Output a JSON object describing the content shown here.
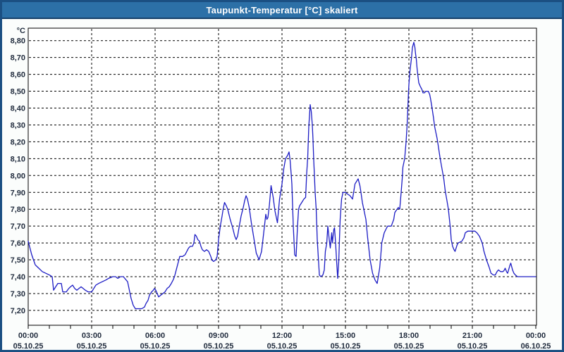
{
  "window": {
    "title": "Taupunkt-Temperatur [°C] skaliert"
  },
  "colors": {
    "titlebar_bg": "#2c70a7",
    "titlebar_text": "#ffffff",
    "frame_border": "#1b4f82",
    "page_bg": "#fbfdfc",
    "plot_bg": "#ffffff",
    "plot_border": "#000000",
    "grid": "#000000",
    "axis_text": "#1f2a3c",
    "line": "#1c1cc4"
  },
  "chart_data": {
    "type": "line",
    "title": "Taupunkt-Temperatur [°C] skaliert",
    "unit_label": "°C",
    "grid": "dashed",
    "legend": "none",
    "ylim": [
      7.2,
      8.8
    ],
    "y_tick_step": 0.1,
    "y_tick_labels": [
      "8,80",
      "8,70",
      "8,60",
      "8,50",
      "8,40",
      "8,30",
      "8,20",
      "8,10",
      "8,00",
      "7,90",
      "7,80",
      "7,70",
      "7,60",
      "7,50",
      "7,40",
      "7,30",
      "7,20"
    ],
    "x_range_hours": [
      0,
      24
    ],
    "x_major_step_hours": 3,
    "x_minor_step_hours": 1,
    "x_ticks": [
      {
        "time": "00:00",
        "date": "05.10.25"
      },
      {
        "time": "03:00",
        "date": "05.10.25"
      },
      {
        "time": "06:00",
        "date": "05.10.25"
      },
      {
        "time": "09:00",
        "date": "05.10.25"
      },
      {
        "time": "12:00",
        "date": "05.10.25"
      },
      {
        "time": "15:00",
        "date": "05.10.25"
      },
      {
        "time": "18:00",
        "date": "05.10.25"
      },
      {
        "time": "21:00",
        "date": "05.10.25"
      },
      {
        "time": "00:00",
        "date": "06.10.25"
      }
    ],
    "points_format": "[minutes_since_00:00, temperature_C]",
    "points": [
      [
        0,
        7.61
      ],
      [
        5,
        7.57
      ],
      [
        10,
        7.53
      ],
      [
        15,
        7.5
      ],
      [
        20,
        7.47
      ],
      [
        25,
        7.46
      ],
      [
        30,
        7.45
      ],
      [
        40,
        7.43
      ],
      [
        50,
        7.42
      ],
      [
        60,
        7.41
      ],
      [
        68,
        7.4
      ],
      [
        72,
        7.32
      ],
      [
        78,
        7.34
      ],
      [
        84,
        7.36
      ],
      [
        94,
        7.36
      ],
      [
        98,
        7.31
      ],
      [
        108,
        7.31
      ],
      [
        115,
        7.33
      ],
      [
        120,
        7.34
      ],
      [
        126,
        7.35
      ],
      [
        132,
        7.33
      ],
      [
        138,
        7.32
      ],
      [
        144,
        7.33
      ],
      [
        150,
        7.34
      ],
      [
        156,
        7.33
      ],
      [
        162,
        7.32
      ],
      [
        170,
        7.31
      ],
      [
        180,
        7.31
      ],
      [
        186,
        7.33
      ],
      [
        192,
        7.35
      ],
      [
        200,
        7.36
      ],
      [
        210,
        7.37
      ],
      [
        220,
        7.38
      ],
      [
        228,
        7.39
      ],
      [
        240,
        7.4
      ],
      [
        248,
        7.4
      ],
      [
        254,
        7.39
      ],
      [
        262,
        7.4
      ],
      [
        270,
        7.4
      ],
      [
        278,
        7.38
      ],
      [
        282,
        7.37
      ],
      [
        288,
        7.31
      ],
      [
        292,
        7.27
      ],
      [
        298,
        7.23
      ],
      [
        304,
        7.21
      ],
      [
        312,
        7.21
      ],
      [
        322,
        7.21
      ],
      [
        330,
        7.22
      ],
      [
        334,
        7.24
      ],
      [
        340,
        7.26
      ],
      [
        344,
        7.29
      ],
      [
        350,
        7.31
      ],
      [
        355,
        7.32
      ],
      [
        358,
        7.33
      ],
      [
        362,
        7.32
      ],
      [
        366,
        7.3
      ],
      [
        370,
        7.28
      ],
      [
        376,
        7.29
      ],
      [
        382,
        7.3
      ],
      [
        388,
        7.31
      ],
      [
        394,
        7.33
      ],
      [
        400,
        7.34
      ],
      [
        406,
        7.36
      ],
      [
        411,
        7.38
      ],
      [
        415,
        7.4
      ],
      [
        420,
        7.44
      ],
      [
        425,
        7.48
      ],
      [
        430,
        7.52
      ],
      [
        438,
        7.52
      ],
      [
        445,
        7.53
      ],
      [
        450,
        7.55
      ],
      [
        455,
        7.57
      ],
      [
        460,
        7.58
      ],
      [
        466,
        7.58
      ],
      [
        470,
        7.6
      ],
      [
        473,
        7.65
      ],
      [
        477,
        7.64
      ],
      [
        481,
        7.62
      ],
      [
        486,
        7.61
      ],
      [
        490,
        7.58
      ],
      [
        494,
        7.56
      ],
      [
        500,
        7.55
      ],
      [
        506,
        7.56
      ],
      [
        512,
        7.55
      ],
      [
        518,
        7.52
      ],
      [
        521,
        7.5
      ],
      [
        526,
        7.49
      ],
      [
        532,
        7.5
      ],
      [
        536,
        7.52
      ],
      [
        540,
        7.62
      ],
      [
        545,
        7.7
      ],
      [
        550,
        7.76
      ],
      [
        553,
        7.8
      ],
      [
        557,
        7.84
      ],
      [
        562,
        7.82
      ],
      [
        566,
        7.8
      ],
      [
        573,
        7.74
      ],
      [
        580,
        7.69
      ],
      [
        586,
        7.64
      ],
      [
        590,
        7.62
      ],
      [
        594,
        7.64
      ],
      [
        598,
        7.69
      ],
      [
        604,
        7.76
      ],
      [
        610,
        7.81
      ],
      [
        614,
        7.85
      ],
      [
        618,
        7.88
      ],
      [
        622,
        7.86
      ],
      [
        627,
        7.81
      ],
      [
        633,
        7.72
      ],
      [
        640,
        7.63
      ],
      [
        647,
        7.54
      ],
      [
        651,
        7.52
      ],
      [
        655,
        7.5
      ],
      [
        662,
        7.55
      ],
      [
        667,
        7.64
      ],
      [
        674,
        7.77
      ],
      [
        677,
        7.74
      ],
      [
        680,
        7.75
      ],
      [
        684,
        7.82
      ],
      [
        689,
        7.94
      ],
      [
        695,
        7.87
      ],
      [
        700,
        7.79
      ],
      [
        707,
        7.72
      ],
      [
        713,
        7.86
      ],
      [
        720,
        7.95
      ],
      [
        725,
        8.04
      ],
      [
        730,
        8.1
      ],
      [
        736,
        8.12
      ],
      [
        740,
        8.14
      ],
      [
        743,
        8.09
      ],
      [
        746,
        8.01
      ],
      [
        748,
        7.95
      ],
      [
        752,
        7.7
      ],
      [
        756,
        7.53
      ],
      [
        760,
        7.52
      ],
      [
        764,
        7.7
      ],
      [
        767,
        7.8
      ],
      [
        770,
        7.82
      ],
      [
        776,
        7.84
      ],
      [
        782,
        7.86
      ],
      [
        787,
        7.87
      ],
      [
        790,
        8.01
      ],
      [
        793,
        8.11
      ],
      [
        796,
        8.29
      ],
      [
        800,
        8.42
      ],
      [
        803,
        8.38
      ],
      [
        806,
        8.3
      ],
      [
        808,
        8.21
      ],
      [
        810,
        8.09
      ],
      [
        812,
        8.0
      ],
      [
        814,
        7.9
      ],
      [
        817,
        7.8
      ],
      [
        820,
        7.62
      ],
      [
        826,
        7.41
      ],
      [
        830,
        7.4
      ],
      [
        836,
        7.41
      ],
      [
        840,
        7.44
      ],
      [
        843,
        7.55
      ],
      [
        847,
        7.6
      ],
      [
        850,
        7.7
      ],
      [
        854,
        7.62
      ],
      [
        857,
        7.57
      ],
      [
        861,
        7.66
      ],
      [
        863,
        7.6
      ],
      [
        867,
        7.68
      ],
      [
        869,
        7.69
      ],
      [
        872,
        7.6
      ],
      [
        875,
        7.49
      ],
      [
        878,
        7.39
      ],
      [
        881,
        7.49
      ],
      [
        883,
        7.62
      ],
      [
        885,
        7.74
      ],
      [
        889,
        7.86
      ],
      [
        893,
        7.9
      ],
      [
        900,
        7.9
      ],
      [
        906,
        7.89
      ],
      [
        913,
        7.88
      ],
      [
        920,
        7.86
      ],
      [
        924,
        7.91
      ],
      [
        927,
        7.95
      ],
      [
        933,
        7.97
      ],
      [
        936,
        7.98
      ],
      [
        941,
        7.94
      ],
      [
        944,
        7.9
      ],
      [
        948,
        7.84
      ],
      [
        952,
        7.8
      ],
      [
        958,
        7.74
      ],
      [
        963,
        7.63
      ],
      [
        970,
        7.5
      ],
      [
        977,
        7.42
      ],
      [
        984,
        7.38
      ],
      [
        990,
        7.36
      ],
      [
        997,
        7.45
      ],
      [
        1000,
        7.52
      ],
      [
        1003,
        7.6
      ],
      [
        1010,
        7.66
      ],
      [
        1017,
        7.69
      ],
      [
        1020,
        7.7
      ],
      [
        1030,
        7.7
      ],
      [
        1037,
        7.74
      ],
      [
        1040,
        7.78
      ],
      [
        1043,
        7.79
      ],
      [
        1050,
        7.81
      ],
      [
        1054,
        7.8
      ],
      [
        1058,
        7.9
      ],
      [
        1061,
        7.98
      ],
      [
        1063,
        8.05
      ],
      [
        1068,
        8.1
      ],
      [
        1072,
        8.2
      ],
      [
        1075,
        8.3
      ],
      [
        1077,
        8.4
      ],
      [
        1079,
        8.5
      ],
      [
        1080,
        8.54
      ],
      [
        1083,
        8.62
      ],
      [
        1087,
        8.69
      ],
      [
        1090,
        8.76
      ],
      [
        1094,
        8.79
      ],
      [
        1097,
        8.76
      ],
      [
        1099,
        8.72
      ],
      [
        1101,
        8.69
      ],
      [
        1103,
        8.64
      ],
      [
        1105,
        8.6
      ],
      [
        1108,
        8.55
      ],
      [
        1112,
        8.53
      ],
      [
        1117,
        8.51
      ],
      [
        1120,
        8.49
      ],
      [
        1124,
        8.49
      ],
      [
        1128,
        8.5
      ],
      [
        1135,
        8.5
      ],
      [
        1139,
        8.48
      ],
      [
        1141,
        8.46
      ],
      [
        1145,
        8.41
      ],
      [
        1150,
        8.34
      ],
      [
        1153,
        8.29
      ],
      [
        1160,
        8.22
      ],
      [
        1163,
        8.18
      ],
      [
        1168,
        8.11
      ],
      [
        1173,
        8.05
      ],
      [
        1179,
        7.98
      ],
      [
        1183,
        7.91
      ],
      [
        1188,
        7.85
      ],
      [
        1192,
        7.8
      ],
      [
        1195,
        7.74
      ],
      [
        1198,
        7.68
      ],
      [
        1200,
        7.62
      ],
      [
        1204,
        7.58
      ],
      [
        1208,
        7.56
      ],
      [
        1211,
        7.55
      ],
      [
        1217,
        7.59
      ],
      [
        1220,
        7.6
      ],
      [
        1230,
        7.61
      ],
      [
        1236,
        7.63
      ],
      [
        1240,
        7.66
      ],
      [
        1247,
        7.67
      ],
      [
        1254,
        7.67
      ],
      [
        1260,
        7.67
      ],
      [
        1267,
        7.67
      ],
      [
        1273,
        7.66
      ],
      [
        1280,
        7.64
      ],
      [
        1284,
        7.62
      ],
      [
        1288,
        7.6
      ],
      [
        1293,
        7.55
      ],
      [
        1300,
        7.5
      ],
      [
        1307,
        7.46
      ],
      [
        1313,
        7.42
      ],
      [
        1320,
        7.41
      ],
      [
        1325,
        7.41
      ],
      [
        1330,
        7.43
      ],
      [
        1334,
        7.44
      ],
      [
        1340,
        7.43
      ],
      [
        1347,
        7.43
      ],
      [
        1351,
        7.44
      ],
      [
        1353,
        7.45
      ],
      [
        1357,
        7.43
      ],
      [
        1360,
        7.42
      ],
      [
        1367,
        7.47
      ],
      [
        1369,
        7.48
      ],
      [
        1374,
        7.44
      ],
      [
        1378,
        7.42
      ],
      [
        1382,
        7.41
      ],
      [
        1388,
        7.4
      ],
      [
        1400,
        7.4
      ],
      [
        1420,
        7.4
      ],
      [
        1440,
        7.4
      ]
    ]
  }
}
